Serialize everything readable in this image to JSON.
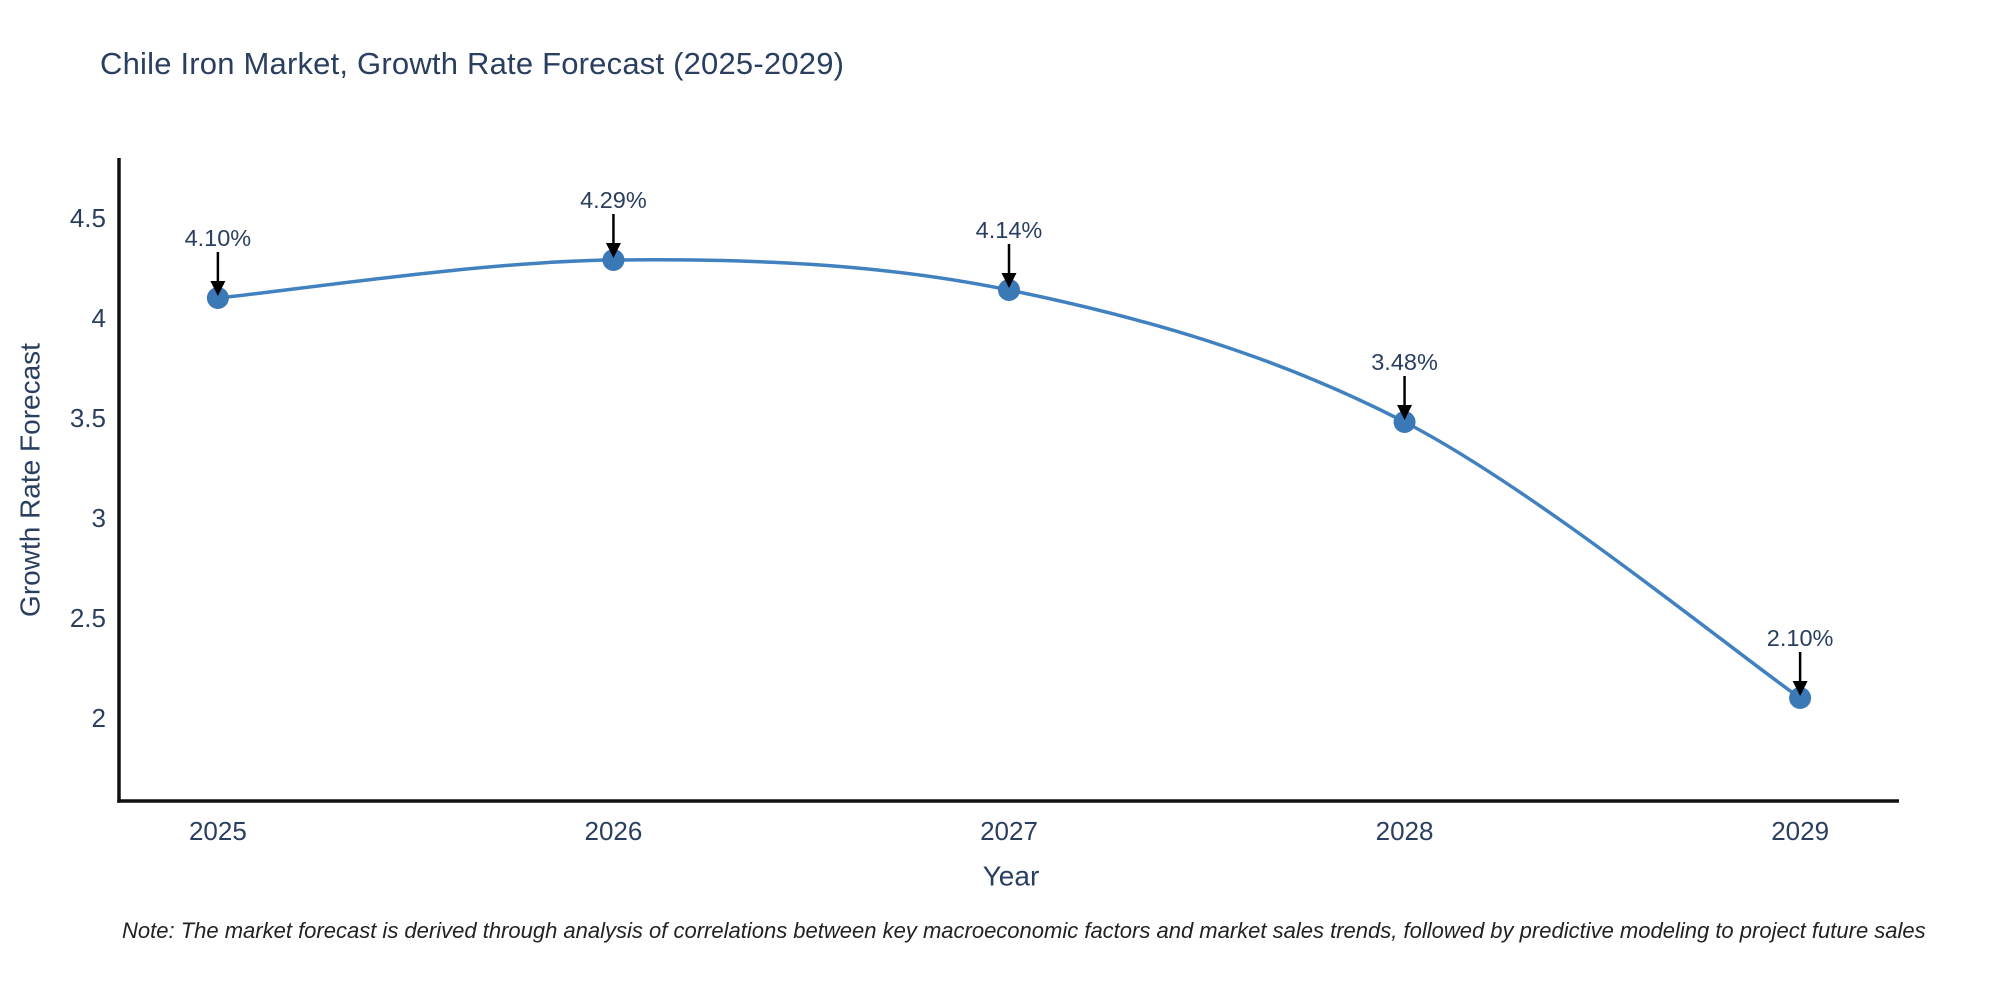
{
  "title": "Chile Iron Market, Growth Rate Forecast (2025-2029)",
  "note": "Note: The market forecast is derived through analysis of correlations between key macroeconomic factors and market sales trends, followed by predictive modeling to project future sales",
  "chart_data": {
    "type": "line",
    "title": "Chile Iron Market, Growth Rate Forecast (2025-2029)",
    "xlabel": "Year",
    "ylabel": "Growth Rate Forecast",
    "x": [
      2025,
      2026,
      2027,
      2028,
      2029
    ],
    "values": [
      4.1,
      4.29,
      4.14,
      3.48,
      2.1
    ],
    "point_labels": [
      "4.10%",
      "4.29%",
      "4.14%",
      "3.48%",
      "2.10%"
    ],
    "x_tick_labels": [
      "2025",
      "2026",
      "2027",
      "2028",
      "2029"
    ],
    "y_ticks": [
      2,
      2.5,
      3,
      3.5,
      4,
      4.5
    ],
    "y_tick_labels": [
      "2",
      "2.5",
      "3",
      "3.5",
      "4",
      "4.5"
    ],
    "x_range": [
      2024.75,
      2029.25
    ],
    "y_range": [
      1.585,
      4.79
    ],
    "line_shape": "spline",
    "grid": false,
    "legend": "none",
    "annotations_arrow": "down",
    "colors": {
      "line": "#4181bf",
      "marker": "#3a78b6",
      "arrow": "#000000",
      "label_text": "#2a3f5f",
      "tick_text": "#2a3f5f",
      "axis_line": "#111111"
    }
  }
}
